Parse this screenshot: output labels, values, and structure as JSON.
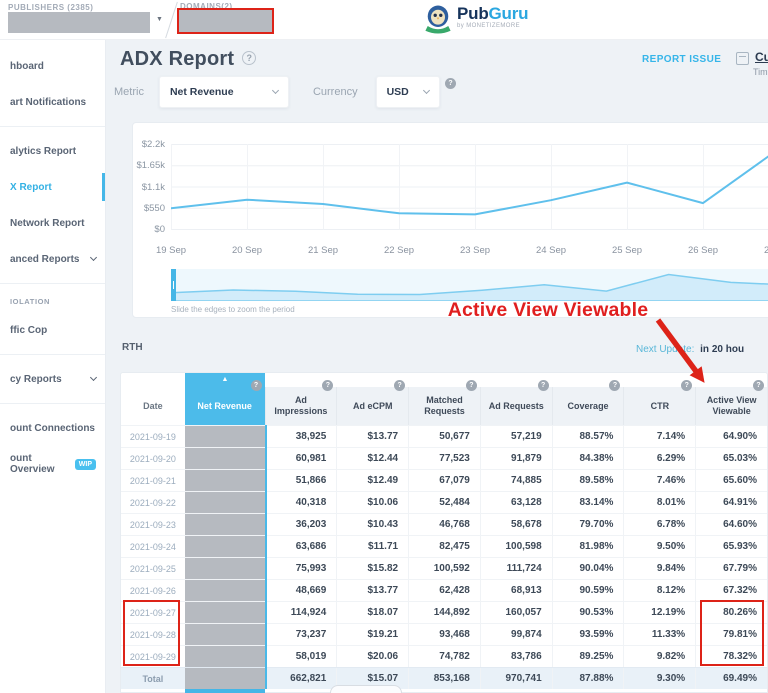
{
  "topbar": {
    "publishers_label": "PUBLISHERS (2385)",
    "domains_label": "DOMAINS(2)",
    "brand": {
      "name_primary": "Pub",
      "name_secondary": "Guru",
      "byline": "by MONETIZEMORE"
    }
  },
  "sidebar": {
    "items": [
      {
        "type": "item",
        "label": "hboard"
      },
      {
        "type": "item",
        "label": "art Notifications"
      },
      {
        "type": "divider"
      },
      {
        "type": "item",
        "label": "alytics Report"
      },
      {
        "type": "item",
        "label": "X Report",
        "active": true
      },
      {
        "type": "item",
        "label": "Network Report"
      },
      {
        "type": "item",
        "label": "anced Reports",
        "chevron": true
      },
      {
        "type": "divider"
      },
      {
        "type": "section",
        "label": "IOLATION"
      },
      {
        "type": "item",
        "label": "ffic Cop"
      },
      {
        "type": "divider"
      },
      {
        "type": "item",
        "label": "cy Reports",
        "chevron": true
      },
      {
        "type": "divider"
      },
      {
        "type": "item",
        "label": "ount Connections"
      },
      {
        "type": "item",
        "label": "ount Overview",
        "badge": "WIP"
      }
    ]
  },
  "header": {
    "title": "ADX Report",
    "report_issue": "REPORT ISSUE",
    "date_range": "Cus",
    "date_range_sub": "Time"
  },
  "controls": {
    "metric_label": "Metric",
    "metric_value": "Net Revenue",
    "currency_label": "Currency",
    "currency_value": "USD"
  },
  "chart_data": {
    "type": "line",
    "title": "",
    "categories": [
      "19 Sep",
      "20 Sep",
      "21 Sep",
      "22 Sep",
      "23 Sep",
      "24 Sep",
      "25 Sep",
      "26 Sep",
      "27 Sep"
    ],
    "values": [
      536,
      759,
      648,
      406,
      378,
      746,
      1202,
      670,
      2077
    ],
    "xlabel": "",
    "ylabel": "Net Revenue (USD)",
    "ylim": [
      0,
      2200
    ],
    "ytick_labels": [
      "$2.2k",
      "$1.65k",
      "$1.1k",
      "$550",
      "$0"
    ],
    "grid": true,
    "legend": "none",
    "line_color": "#5fc0ec",
    "slider": {
      "categories": [
        "19 Sep",
        "20 Sep",
        "21 Sep",
        "22 Sep",
        "23 Sep",
        "24 Sep",
        "25 Sep",
        "26 Sep",
        "27 Sep",
        "28 Sep",
        "29 Sep"
      ],
      "values": [
        536,
        759,
        648,
        406,
        378,
        746,
        1202,
        670,
        2077,
        1407,
        1164
      ],
      "hint": "Slide the edges to zoom the period"
    }
  },
  "section": {
    "rth_label": "RTH",
    "next_update_label": "Next Update:",
    "next_update_value": "in 20 hou"
  },
  "annotation": {
    "highlight_text": "Active View Viewable"
  },
  "table": {
    "columns": [
      "Date",
      "Net Revenue",
      "Ad Impressions",
      "Ad eCPM",
      "Matched Requests",
      "Ad Requests",
      "Coverage",
      "CTR",
      "Active View Viewable"
    ],
    "rows": [
      [
        "2021-09-19",
        "38,925",
        "$13.77",
        "50,677",
        "57,219",
        "88.57%",
        "7.14%",
        "64.90%"
      ],
      [
        "2021-09-20",
        "60,981",
        "$12.44",
        "77,523",
        "91,879",
        "84.38%",
        "6.29%",
        "65.03%"
      ],
      [
        "2021-09-21",
        "51,866",
        "$12.49",
        "67,079",
        "74,885",
        "89.58%",
        "7.46%",
        "65.60%"
      ],
      [
        "2021-09-22",
        "40,318",
        "$10.06",
        "52,484",
        "63,128",
        "83.14%",
        "8.01%",
        "64.91%"
      ],
      [
        "2021-09-23",
        "36,203",
        "$10.43",
        "46,768",
        "58,678",
        "79.70%",
        "6.78%",
        "64.60%"
      ],
      [
        "2021-09-24",
        "63,686",
        "$11.71",
        "82,475",
        "100,598",
        "81.98%",
        "9.50%",
        "65.93%"
      ],
      [
        "2021-09-25",
        "75,993",
        "$15.82",
        "100,592",
        "111,724",
        "90.04%",
        "9.84%",
        "67.79%"
      ],
      [
        "2021-09-26",
        "48,669",
        "$13.77",
        "62,428",
        "68,913",
        "90.59%",
        "8.12%",
        "67.32%"
      ],
      [
        "2021-09-27",
        "114,924",
        "$18.07",
        "144,892",
        "160,057",
        "90.53%",
        "12.19%",
        "80.26%"
      ],
      [
        "2021-09-28",
        "73,237",
        "$19.21",
        "93,468",
        "99,874",
        "93.59%",
        "11.33%",
        "79.81%"
      ],
      [
        "2021-09-29",
        "58,019",
        "$20.06",
        "74,782",
        "83,786",
        "89.25%",
        "9.82%",
        "78.32%"
      ]
    ],
    "total_row": [
      "Total",
      "662,821",
      "$15.07",
      "853,168",
      "970,741",
      "87.88%",
      "9.30%",
      "69.49%"
    ],
    "net_revenue_redacted": true
  },
  "icons": {
    "help_icon": "?",
    "sort_asc_icon": "▲",
    "caret_down_icon": "▼"
  },
  "colors": {
    "accent": "#45b7e8",
    "header_cyan": "#4cbbea",
    "annotation_red": "#dd2318",
    "redaction_gray": "#b6bac0",
    "line_blue": "#5fc0ec"
  }
}
